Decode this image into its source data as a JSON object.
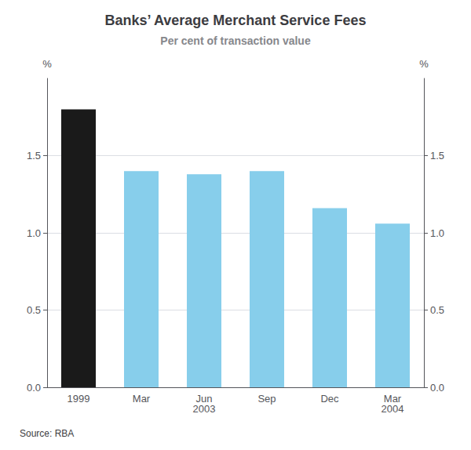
{
  "chart_data": {
    "type": "bar",
    "title": "Banks’ Average Merchant Service Fees",
    "subtitle": "Per cent of transaction value",
    "categories": [
      "1999",
      "Mar",
      "Jun\n2003",
      "Sep",
      "Dec",
      "Mar\n2004"
    ],
    "values": [
      1.8,
      1.4,
      1.38,
      1.4,
      1.16,
      1.06
    ],
    "colors": [
      "#1a1a1a",
      "#87CEEB",
      "#87CEEB",
      "#87CEEB",
      "#87CEEB",
      "#87CEEB"
    ],
    "ylim": [
      0.0,
      2.0
    ],
    "yticks": [
      {
        "value": 0.0,
        "label": "0.0"
      },
      0.5,
      {
        "value": 1.0,
        "label": "1.0"
      },
      1.5
    ],
    "y2lim": [
      0.0,
      2.0
    ],
    "y2ticks": [
      {
        "value": 0.0,
        "label": "0.0"
      },
      0.5,
      {
        "value": 1.0,
        "label": "1.0"
      },
      1.5
    ],
    "ylabel": "%",
    "y2label": "%",
    "annotations": [
      "Source: RBA"
    ],
    "grid": true
  }
}
